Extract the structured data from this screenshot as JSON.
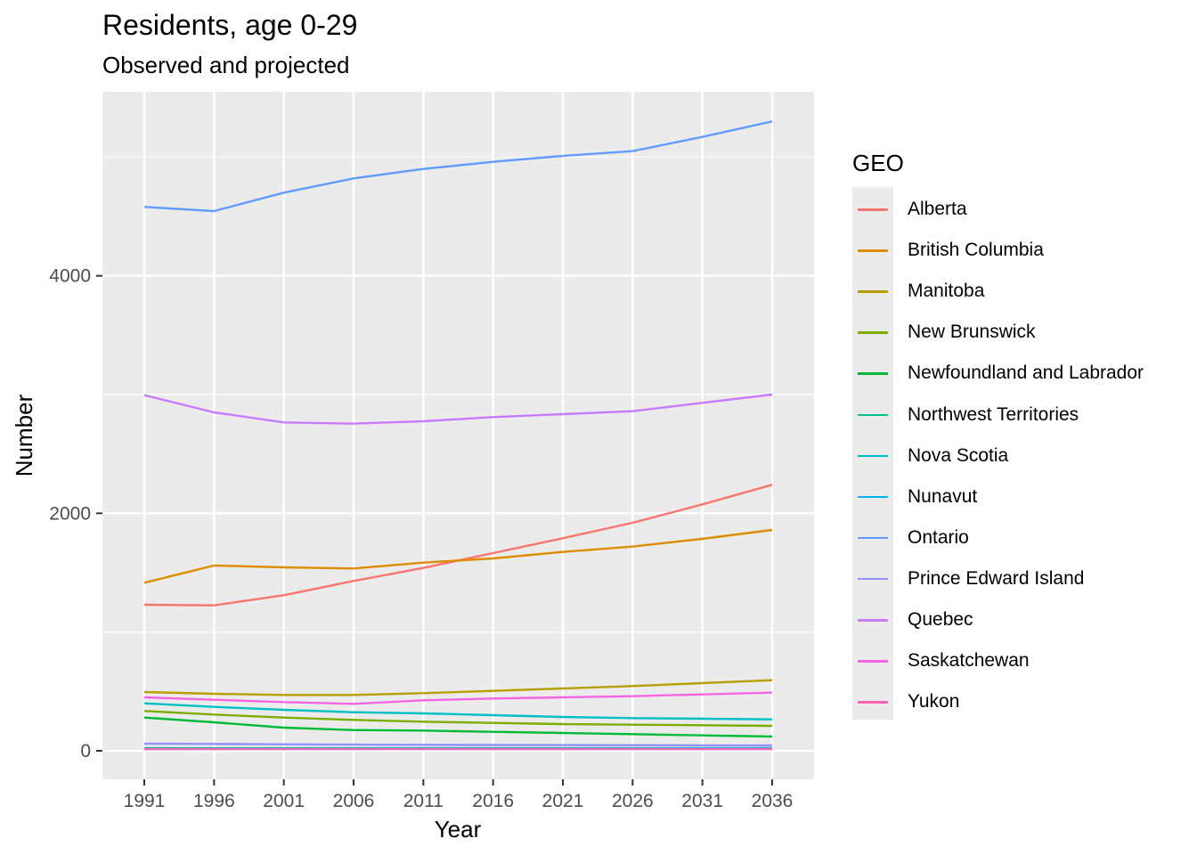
{
  "chart_data": {
    "type": "line",
    "title": "Residents, age 0-29",
    "subtitle": "Observed and projected",
    "xlabel": "Year",
    "ylabel": "Number",
    "x": [
      1991,
      1996,
      2001,
      2006,
      2011,
      2016,
      2021,
      2026,
      2031,
      2036
    ],
    "xlim": [
      1988,
      2039
    ],
    "ylim": [
      -240,
      5550
    ],
    "y_ticks": [
      0,
      2000,
      4000
    ],
    "grid": true,
    "legend_title": "GEO",
    "legend_position": "right",
    "series": [
      {
        "name": "Alberta",
        "color": "#F8766D",
        "values": [
          1230,
          1225,
          1310,
          1430,
          1540,
          1665,
          1790,
          1920,
          2075,
          2240
        ]
      },
      {
        "name": "British Columbia",
        "color": "#DE8C00",
        "values": [
          1415,
          1560,
          1545,
          1535,
          1585,
          1620,
          1675,
          1720,
          1785,
          1860
        ]
      },
      {
        "name": "Manitoba",
        "color": "#B79F00",
        "values": [
          495,
          480,
          470,
          470,
          485,
          505,
          525,
          545,
          570,
          595
        ]
      },
      {
        "name": "New Brunswick",
        "color": "#7CAE00",
        "values": [
          335,
          305,
          280,
          260,
          245,
          235,
          225,
          220,
          215,
          210
        ]
      },
      {
        "name": "Newfoundland and Labrador",
        "color": "#00BA38",
        "values": [
          280,
          240,
          195,
          175,
          170,
          160,
          150,
          140,
          130,
          120
        ]
      },
      {
        "name": "Northwest Territories",
        "color": "#00C08B",
        "values": [
          22,
          22,
          22,
          22,
          22,
          22,
          22,
          22,
          22,
          22
        ]
      },
      {
        "name": "Nova Scotia",
        "color": "#00BFC4",
        "values": [
          400,
          370,
          345,
          325,
          315,
          300,
          285,
          275,
          270,
          265
        ]
      },
      {
        "name": "Nunavut",
        "color": "#00B4F0",
        "values": [
          15,
          16,
          17,
          18,
          18,
          19,
          19,
          20,
          20,
          20
        ]
      },
      {
        "name": "Ontario",
        "color": "#619CFF",
        "values": [
          4580,
          4545,
          4700,
          4820,
          4900,
          4960,
          5010,
          5050,
          5170,
          5300
        ]
      },
      {
        "name": "Prince Edward Island",
        "color": "#9590FF",
        "values": [
          60,
          58,
          55,
          52,
          50,
          49,
          48,
          47,
          46,
          45
        ]
      },
      {
        "name": "Quebec",
        "color": "#C77CFF",
        "values": [
          2995,
          2850,
          2765,
          2755,
          2775,
          2810,
          2835,
          2860,
          2930,
          3000
        ]
      },
      {
        "name": "Saskatchewan",
        "color": "#F564E3",
        "values": [
          450,
          430,
          410,
          395,
          425,
          440,
          450,
          460,
          475,
          490
        ]
      },
      {
        "name": "Yukon",
        "color": "#FF64B0",
        "values": [
          14,
          14,
          14,
          14,
          14,
          14,
          14,
          14,
          14,
          14
        ]
      }
    ]
  }
}
